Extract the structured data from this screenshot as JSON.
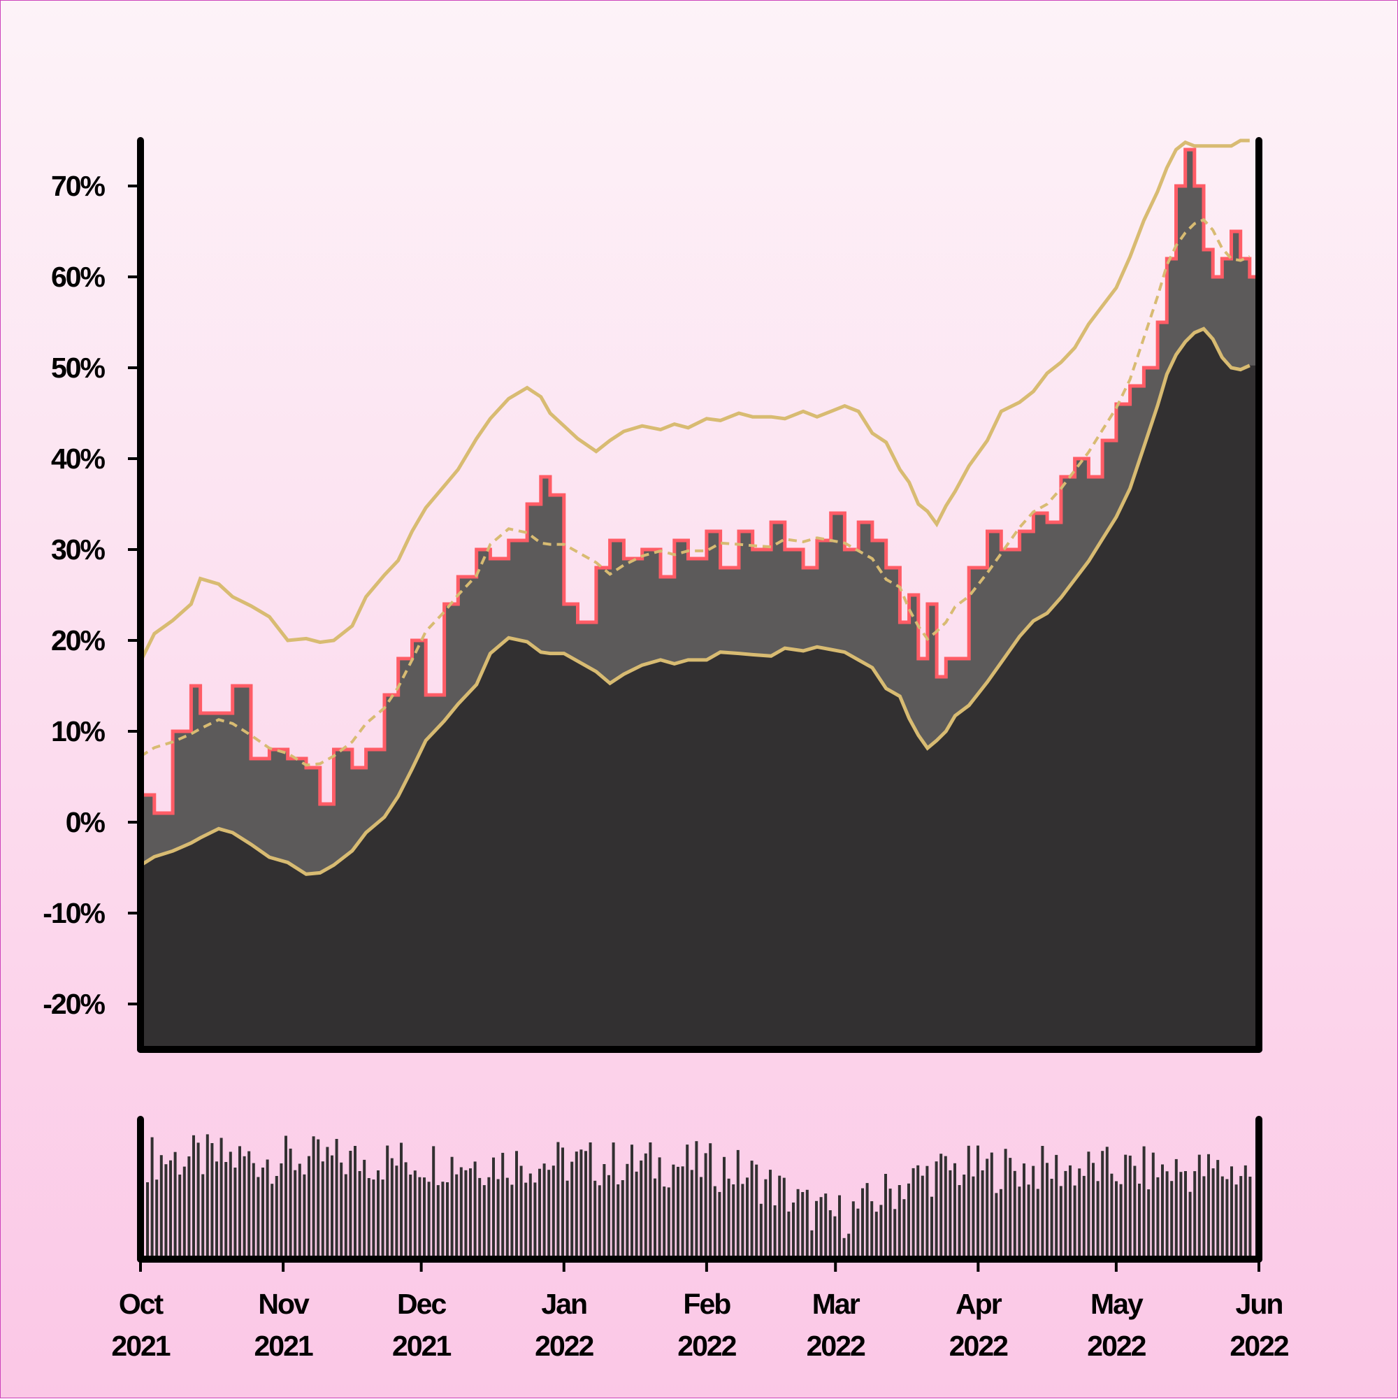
{
  "chart_data": {
    "type": "area",
    "title": "",
    "xlabel": "",
    "ylabel": "",
    "ylim": [
      -25,
      75
    ],
    "y_tick_values": [
      -20,
      -10,
      0,
      10,
      20,
      30,
      40,
      50,
      60,
      70
    ],
    "y_tick_labels": [
      "-20%",
      "-10%",
      "0%",
      "10%",
      "20%",
      "30%",
      "40%",
      "50%",
      "60%",
      "70%"
    ],
    "x_tick_dates": [
      "2021-10-01",
      "2021-11-01",
      "2021-12-01",
      "2022-01-01",
      "2022-02-01",
      "2022-03-01",
      "2022-04-01",
      "2022-05-01",
      "2022-06-01"
    ],
    "x_tick_labels": [
      {
        "month": "Oct",
        "year": "2021"
      },
      {
        "month": "Nov",
        "year": "2021"
      },
      {
        "month": "Dec",
        "year": "2021"
      },
      {
        "month": "Jan",
        "year": "2022"
      },
      {
        "month": "Feb",
        "year": "2022"
      },
      {
        "month": "Mar",
        "year": "2022"
      },
      {
        "month": "Apr",
        "year": "2022"
      },
      {
        "month": "May",
        "year": "2022"
      },
      {
        "month": "Jun",
        "year": "2022"
      }
    ],
    "grid": false,
    "legend": "none",
    "date_range": [
      "2021-10-01",
      "2022-06-01"
    ],
    "colors": {
      "value_line": "#ff5c66",
      "mid_band": "#5c5a5a",
      "base_fill": "#323031",
      "envelope": "#d8bb72",
      "volume_bars": "#323031"
    },
    "series": [
      {
        "role": "value",
        "style": "stepped red line with dark fill",
        "points": [
          [
            "2021-10-01",
            3
          ],
          [
            "2021-10-04",
            1
          ],
          [
            "2021-10-08",
            10
          ],
          [
            "2021-10-12",
            15
          ],
          [
            "2021-10-14",
            12
          ],
          [
            "2021-10-18",
            12
          ],
          [
            "2021-10-21",
            15
          ],
          [
            "2021-10-25",
            7
          ],
          [
            "2021-10-29",
            8
          ],
          [
            "2021-11-02",
            7
          ],
          [
            "2021-11-06",
            6
          ],
          [
            "2021-11-09",
            2
          ],
          [
            "2021-11-12",
            8
          ],
          [
            "2021-11-16",
            6
          ],
          [
            "2021-11-19",
            8
          ],
          [
            "2021-11-23",
            14
          ],
          [
            "2021-11-26",
            18
          ],
          [
            "2021-11-29",
            20
          ],
          [
            "2021-12-02",
            14
          ],
          [
            "2021-12-06",
            24
          ],
          [
            "2021-12-09",
            27
          ],
          [
            "2021-12-13",
            30
          ],
          [
            "2021-12-16",
            29
          ],
          [
            "2021-12-20",
            31
          ],
          [
            "2021-12-24",
            35
          ],
          [
            "2021-12-27",
            38
          ],
          [
            "2021-12-29",
            36
          ],
          [
            "2022-01-01",
            24
          ],
          [
            "2022-01-04",
            22
          ],
          [
            "2022-01-08",
            28
          ],
          [
            "2022-01-11",
            31
          ],
          [
            "2022-01-14",
            29
          ],
          [
            "2022-01-18",
            30
          ],
          [
            "2022-01-22",
            27
          ],
          [
            "2022-01-25",
            31
          ],
          [
            "2022-01-28",
            29
          ],
          [
            "2022-02-01",
            32
          ],
          [
            "2022-02-04",
            28
          ],
          [
            "2022-02-08",
            32
          ],
          [
            "2022-02-11",
            30
          ],
          [
            "2022-02-15",
            33
          ],
          [
            "2022-02-18",
            30
          ],
          [
            "2022-02-22",
            28
          ],
          [
            "2022-02-25",
            31
          ],
          [
            "2022-02-28",
            34
          ],
          [
            "2022-03-03",
            30
          ],
          [
            "2022-03-06",
            33
          ],
          [
            "2022-03-09",
            31
          ],
          [
            "2022-03-12",
            28
          ],
          [
            "2022-03-15",
            22
          ],
          [
            "2022-03-17",
            25
          ],
          [
            "2022-03-19",
            18
          ],
          [
            "2022-03-21",
            24
          ],
          [
            "2022-03-23",
            16
          ],
          [
            "2022-03-25",
            18
          ],
          [
            "2022-03-27",
            18
          ],
          [
            "2022-03-30",
            28
          ],
          [
            "2022-04-03",
            32
          ],
          [
            "2022-04-06",
            30
          ],
          [
            "2022-04-10",
            32
          ],
          [
            "2022-04-13",
            34
          ],
          [
            "2022-04-16",
            33
          ],
          [
            "2022-04-19",
            38
          ],
          [
            "2022-04-22",
            40
          ],
          [
            "2022-04-25",
            38
          ],
          [
            "2022-04-28",
            42
          ],
          [
            "2022-05-01",
            46
          ],
          [
            "2022-05-04",
            48
          ],
          [
            "2022-05-07",
            50
          ],
          [
            "2022-05-10",
            55
          ],
          [
            "2022-05-12",
            62
          ],
          [
            "2022-05-14",
            70
          ],
          [
            "2022-05-16",
            74
          ],
          [
            "2022-05-18",
            70
          ],
          [
            "2022-05-20",
            63
          ],
          [
            "2022-05-22",
            60
          ],
          [
            "2022-05-24",
            62
          ],
          [
            "2022-05-26",
            65
          ],
          [
            "2022-05-28",
            62
          ],
          [
            "2022-05-30",
            60
          ]
        ]
      }
    ]
  }
}
